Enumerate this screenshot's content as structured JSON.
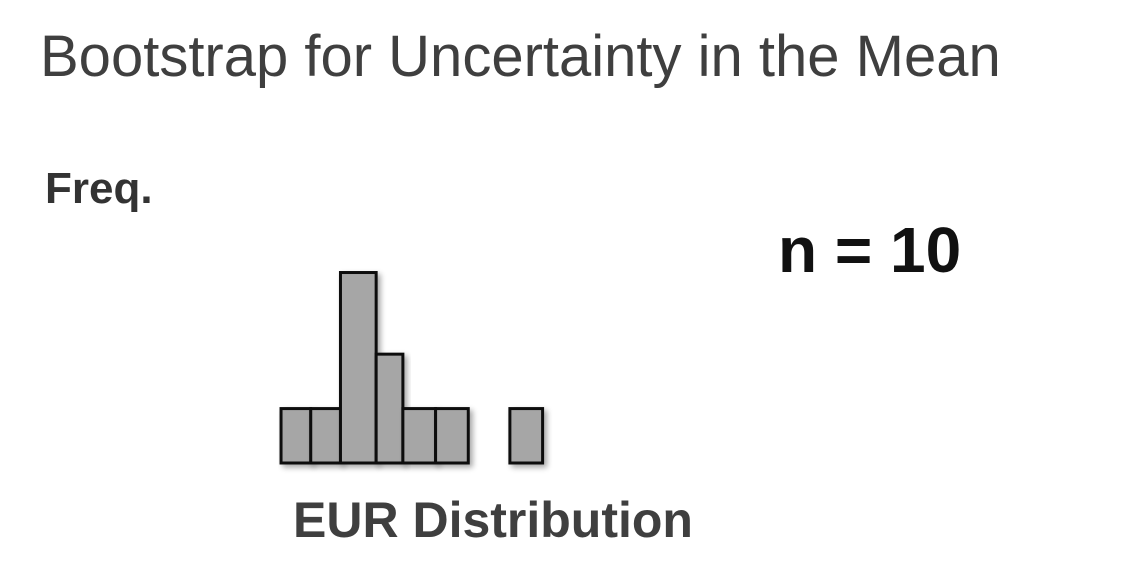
{
  "title": "Bootstrap for Uncertainty in the Mean",
  "annotation": "n = 10",
  "colors": {
    "bar_fill": "#a6a6a6",
    "bar_stroke": "#111111",
    "axis": "#111111",
    "title": "#3f3f3f"
  },
  "chart_data": {
    "type": "bar",
    "title": "Bootstrap for Uncertainty in the Mean",
    "xlabel": "EUR Distribution",
    "ylabel": "Freq.",
    "bins": [
      {
        "x0": 3.5,
        "x1": 4.5,
        "value": 1
      },
      {
        "x0": 4.5,
        "x1": 5.5,
        "value": 1
      },
      {
        "x0": 5.5,
        "x1": 6.7,
        "value": 3.5
      },
      {
        "x0": 6.7,
        "x1": 7.6,
        "value": 2
      },
      {
        "x0": 7.6,
        "x1": 8.7,
        "value": 1
      },
      {
        "x0": 8.7,
        "x1": 9.8,
        "value": 1
      },
      {
        "x0": 11.2,
        "x1": 12.3,
        "value": 1
      }
    ],
    "xlim": [
      0,
      18
    ],
    "ylim": [
      0,
      5.2
    ],
    "grid": false,
    "annotation": "n = 10"
  }
}
